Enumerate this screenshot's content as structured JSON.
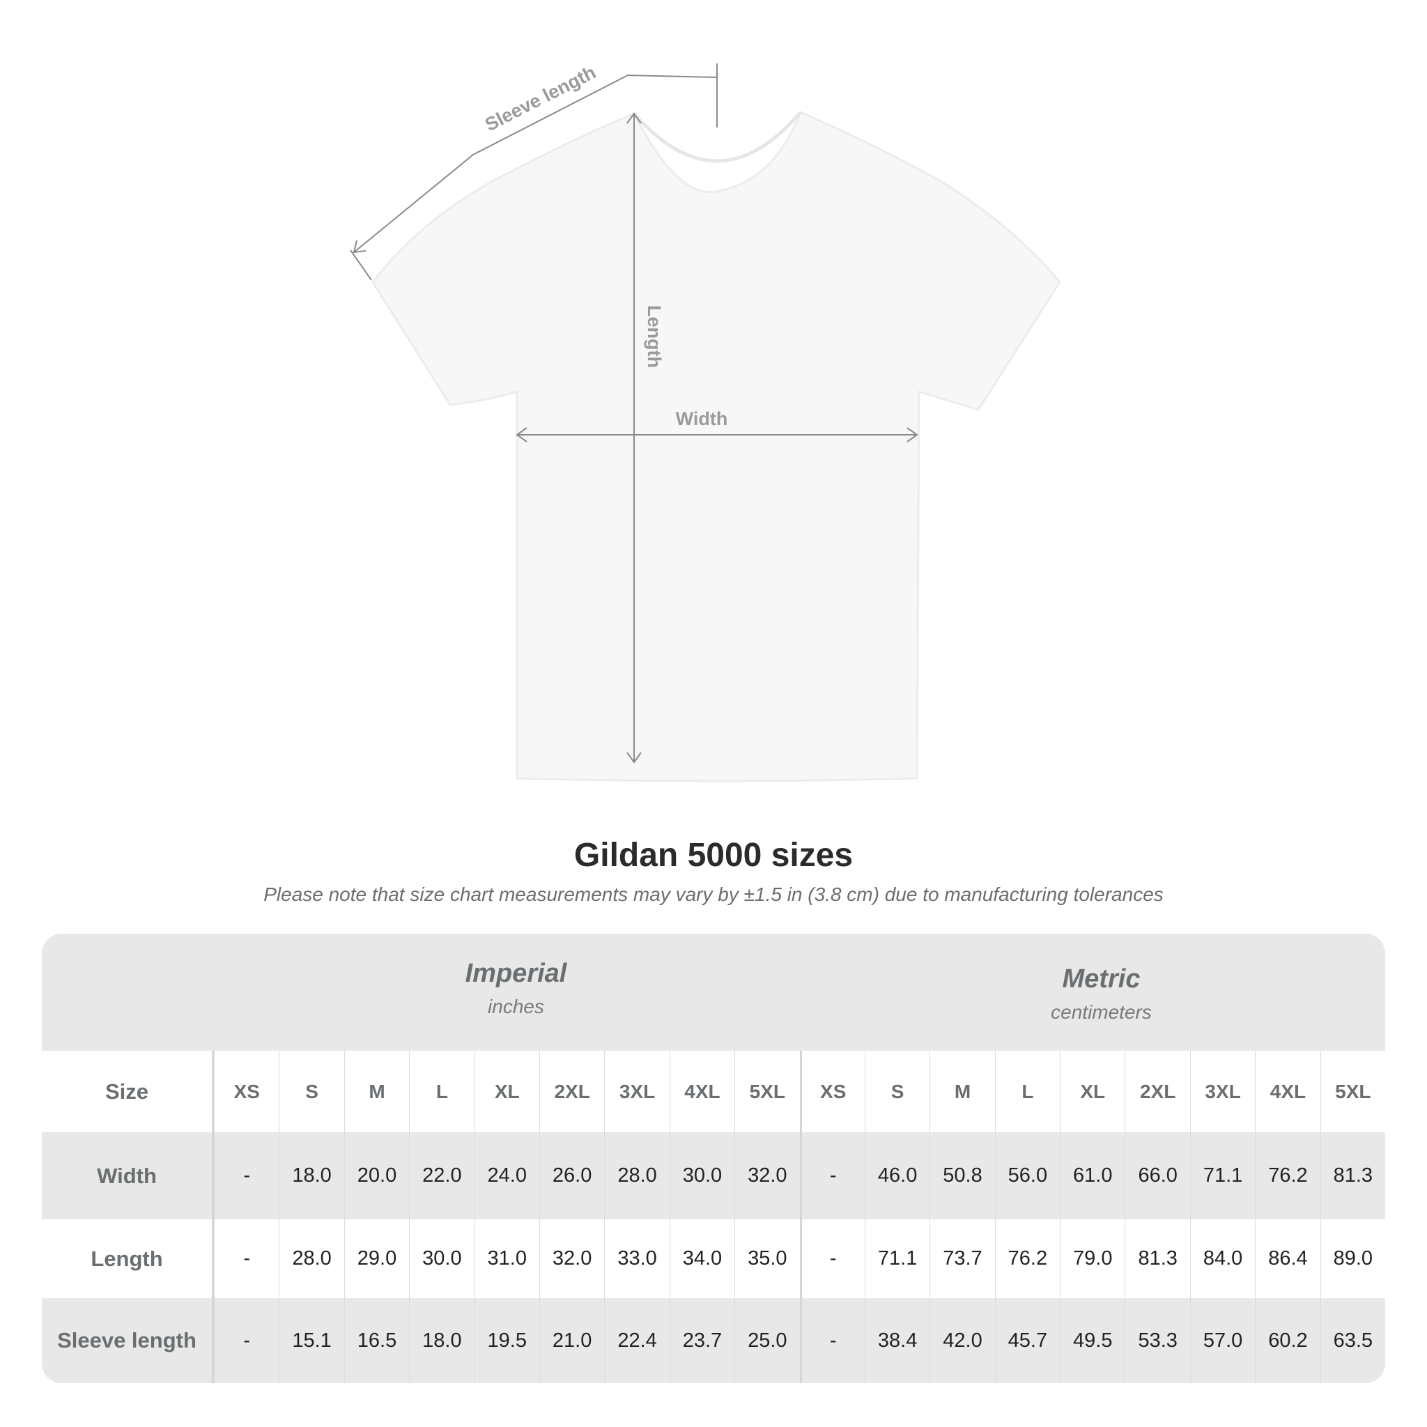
{
  "diagram": {
    "labels": {
      "sleeve": "Sleeve length",
      "length": "Length",
      "width": "Width"
    }
  },
  "title": "Gildan 5000 sizes",
  "note": "Please note that size chart measurements may vary by ±1.5 in (3.8 cm) due to manufacturing tolerances",
  "table": {
    "imperial": {
      "title": "Imperial",
      "unit": "inches"
    },
    "metric": {
      "title": "Metric",
      "unit": "centimeters"
    },
    "size_label": "Size",
    "sizes": [
      "XS",
      "S",
      "M",
      "L",
      "XL",
      "2XL",
      "3XL",
      "4XL",
      "5XL"
    ],
    "rows": [
      {
        "label": "Width",
        "imperial": [
          "-",
          "18.0",
          "20.0",
          "22.0",
          "24.0",
          "26.0",
          "28.0",
          "30.0",
          "32.0"
        ],
        "metric": [
          "-",
          "46.0",
          "50.8",
          "56.0",
          "61.0",
          "66.0",
          "71.1",
          "76.2",
          "81.3"
        ]
      },
      {
        "label": "Length",
        "imperial": [
          "-",
          "28.0",
          "29.0",
          "30.0",
          "31.0",
          "32.0",
          "33.0",
          "34.0",
          "35.0"
        ],
        "metric": [
          "-",
          "71.1",
          "73.7",
          "76.2",
          "79.0",
          "81.3",
          "84.0",
          "86.4",
          "89.0"
        ]
      },
      {
        "label": "Sleeve length",
        "imperial": [
          "-",
          "15.1",
          "16.5",
          "18.0",
          "19.5",
          "21.0",
          "22.4",
          "23.7",
          "25.0"
        ],
        "metric": [
          "-",
          "38.4",
          "42.0",
          "45.7",
          "49.5",
          "53.3",
          "57.0",
          "60.2",
          "63.5"
        ]
      }
    ]
  },
  "colors": {
    "band": "#e8e8e8",
    "header_text": "#6a6e70",
    "measure_line": "#8a8a8a"
  }
}
